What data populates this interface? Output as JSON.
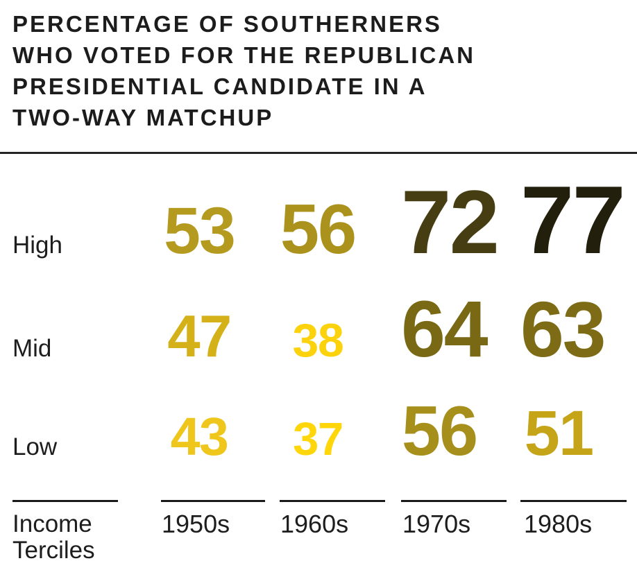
{
  "title": {
    "text": "PERCENTAGE OF SOUTHERNERS\nWHO VOTED FOR THE REPUBLICAN\nPRESIDENTIAL CANDIDATE IN A\nTWO-WAY MATCHUP"
  },
  "axis": {
    "row_header": "Income\nTerciles",
    "columns": [
      "1950s",
      "1960s",
      "1970s",
      "1980s"
    ]
  },
  "rows": [
    {
      "label": "High",
      "values": [
        {
          "value": 53,
          "color": "#B49A1E"
        },
        {
          "value": 56,
          "color": "#AB921C"
        },
        {
          "value": 72,
          "color": "#463D12"
        },
        {
          "value": 77,
          "color": "#221F0C"
        }
      ]
    },
    {
      "label": "Mid",
      "values": [
        {
          "value": 47,
          "color": "#D4B118"
        },
        {
          "value": 38,
          "color": "#FBD20B"
        },
        {
          "value": 64,
          "color": "#7A6914"
        },
        {
          "value": 63,
          "color": "#7D6B15"
        }
      ]
    },
    {
      "label": "Low",
      "values": [
        {
          "value": 43,
          "color": "#EEC61C"
        },
        {
          "value": 37,
          "color": "#FFD60A"
        },
        {
          "value": 56,
          "color": "#A78F1B"
        },
        {
          "value": 51,
          "color": "#C5A417"
        }
      ]
    }
  ],
  "style": {
    "low_value_color": "#FFD60A",
    "high_value_color": "#221F0C",
    "text_color": "#1d1d1d",
    "rule_color": "#242424"
  },
  "chart_data": {
    "type": "table",
    "title": "PERCENTAGE OF SOUTHERNERS WHO VOTED FOR THE REPUBLICAN PRESIDENTIAL CANDIDATE IN A TWO-WAY MATCHUP",
    "categories": [
      "1950s",
      "1960s",
      "1970s",
      "1980s"
    ],
    "series": [
      {
        "name": "High",
        "values": [
          53,
          56,
          72,
          77
        ]
      },
      {
        "name": "Mid",
        "values": [
          47,
          38,
          64,
          63
        ]
      },
      {
        "name": "Low",
        "values": [
          43,
          37,
          56,
          51
        ]
      }
    ],
    "row_axis_label": "Income Terciles",
    "value_unit": "percent",
    "encoding": "Each number is rendered with font size and color darkness proportional to its value: low values are small and bright yellow, high values are large and near-black olive.",
    "legend_position": "none",
    "grid": false
  }
}
